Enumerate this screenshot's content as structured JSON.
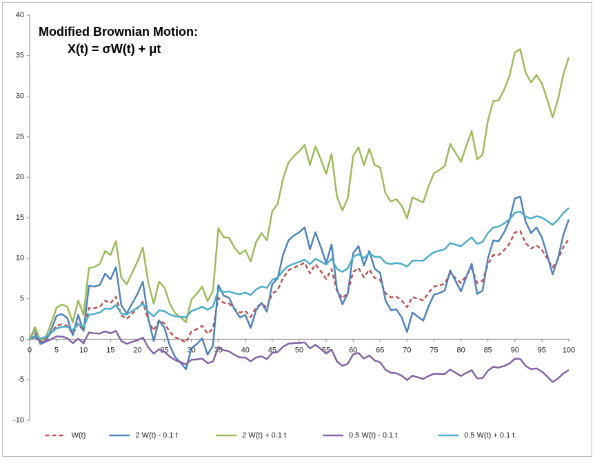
{
  "chart_data": {
    "type": "line",
    "title": "Modified Brownian Motion:",
    "subtitle": "X(t) = σW(t) + μt",
    "x": [
      0,
      1,
      2,
      3,
      4,
      5,
      6,
      7,
      8,
      9,
      10,
      11,
      12,
      13,
      14,
      15,
      16,
      17,
      18,
      19,
      20,
      21,
      22,
      23,
      24,
      25,
      26,
      27,
      28,
      29,
      30,
      31,
      32,
      33,
      34,
      35,
      36,
      37,
      38,
      39,
      40,
      41,
      42,
      43,
      44,
      45,
      46,
      47,
      48,
      49,
      50,
      51,
      52,
      53,
      54,
      55,
      56,
      57,
      58,
      59,
      60,
      61,
      62,
      63,
      64,
      65,
      66,
      67,
      68,
      69,
      70,
      71,
      72,
      73,
      74,
      75,
      76,
      77,
      78,
      79,
      80,
      81,
      82,
      83,
      84,
      85,
      86,
      87,
      88,
      89,
      90,
      91,
      92,
      93,
      94,
      95,
      96,
      97,
      98,
      99,
      100
    ],
    "series": [
      {
        "name": "W(t)",
        "color": "#c0504d",
        "dash": true,
        "values": [
          0,
          0.7,
          -0.2,
          0,
          0.8,
          1.7,
          1.85,
          1.65,
          0.65,
          1.95,
          1,
          3.85,
          3.85,
          4,
          4.75,
          4.45,
          5.25,
          2.95,
          2.5,
          3.15,
          3.8,
          4.6,
          2.4,
          1.05,
          2.35,
          1.95,
          0.9,
          0.25,
          -0.05,
          -0.4,
          0.95,
          1.25,
          1.65,
          0.7,
          1.3,
          5.1,
          4.5,
          4.4,
          3.75,
          3.3,
          3.5,
          2.75,
          3.9,
          4.4,
          3.9,
          5.65,
          6.05,
          7.55,
          8.5,
          8.85,
          9.1,
          9.45,
          8.15,
          9.25,
          8.4,
          7.45,
          8.65,
          5.95,
          5.05,
          5.75,
          8.3,
          8.8,
          7.65,
          8.6,
          7.55,
          7.35,
          5.7,
          5.15,
          5.25,
          4.8,
          3.95,
          5.2,
          5,
          4.8,
          5.75,
          6.5,
          6.65,
          6.85,
          8.15,
          7.55,
          6.95,
          7.9,
          8.75,
          6.95,
          7.2,
          9.25,
          10.4,
          10.4,
          11,
          11.8,
          13.2,
          13.35,
          11.85,
          11.2,
          11.6,
          11.05,
          10,
          8.85,
          9.9,
          11.4,
          12.4
        ]
      },
      {
        "name": "2 W(t) - 0.1 t",
        "color": "#4f81bd",
        "dash": false,
        "values": [
          0,
          1.3,
          -0.6,
          -0.3,
          1.2,
          2.9,
          3.1,
          2.6,
          0.5,
          3.0,
          1.0,
          6.6,
          6.5,
          6.7,
          8.1,
          7.4,
          8.9,
          4.2,
          3.2,
          4.4,
          5.6,
          7.1,
          2.6,
          -0.2,
          2.3,
          1.4,
          -0.8,
          -2.2,
          -2.9,
          -3.7,
          -1.1,
          -0.6,
          0.1,
          -1.9,
          -0.8,
          6.7,
          5.4,
          5.1,
          3.7,
          2.7,
          3.0,
          1.4,
          3.6,
          4.5,
          3.4,
          6.8,
          7.5,
          10.4,
          12.2,
          12.8,
          13.2,
          13.8,
          11.1,
          13.2,
          11.4,
          9.4,
          11.7,
          6.2,
          4.3,
          5.6,
          10.6,
          11.5,
          9.1,
          10.9,
          8.7,
          8.2,
          4.8,
          3.6,
          3.7,
          2.7,
          0.9,
          3.3,
          2.8,
          2.3,
          4.1,
          5.5,
          5.7,
          6.0,
          8.5,
          7.2,
          5.9,
          7.7,
          9.3,
          5.6,
          6.0,
          10.0,
          12.2,
          12.1,
          13.2,
          14.7,
          17.4,
          17.6,
          14.5,
          13.1,
          13.8,
          12.6,
          10.4,
          8.0,
          10.0,
          12.9,
          14.8
        ]
      },
      {
        "name": "2 W(t) + 0.1 t",
        "color": "#9bbb59",
        "dash": false,
        "values": [
          0,
          1.5,
          -0.2,
          0.3,
          2,
          3.9,
          4.3,
          4.0,
          2.1,
          4.8,
          3.0,
          8.8,
          8.9,
          9.3,
          10.9,
          10.4,
          12.1,
          7.6,
          6.8,
          8.2,
          9.6,
          11.3,
          7.0,
          4.4,
          7.1,
          6.4,
          4.4,
          3.2,
          2.7,
          2.1,
          4.9,
          5.6,
          6.5,
          4.7,
          6.0,
          13.7,
          12.6,
          12.5,
          11.3,
          10.5,
          11.0,
          9.6,
          12.0,
          13.1,
          12.2,
          15.8,
          16.7,
          19.8,
          21.8,
          22.6,
          23.2,
          24.0,
          21.5,
          23.8,
          22.2,
          20.4,
          22.9,
          17.6,
          15.9,
          17.4,
          22.6,
          23.7,
          21.5,
          23.5,
          21.5,
          21.2,
          18.0,
          17.0,
          17.3,
          16.5,
          14.9,
          17.5,
          17.2,
          16.9,
          18.9,
          20.5,
          20.9,
          21.4,
          24.1,
          23.0,
          21.9,
          23.9,
          25.7,
          22.2,
          22.8,
          27.0,
          29.4,
          29.5,
          30.8,
          32.5,
          35.4,
          35.8,
          32.9,
          31.7,
          32.6,
          31.6,
          29.6,
          27.4,
          29.6,
          32.7,
          34.8
        ]
      },
      {
        "name": "0.5 W(t) - 0.1 t",
        "color": "#8064a2",
        "dash": false,
        "values": [
          0,
          0.25,
          -0.3,
          -0.3,
          0,
          0.35,
          0.33,
          0.13,
          -0.48,
          0.08,
          -0.5,
          0.83,
          0.73,
          0.7,
          0.98,
          0.73,
          1.03,
          -0.23,
          -0.55,
          -0.33,
          -0.1,
          0.2,
          -1.0,
          -1.78,
          -1.23,
          -1.53,
          -2.15,
          -2.58,
          -2.83,
          -3.1,
          -2.53,
          -2.48,
          -2.38,
          -2.95,
          -2.75,
          -0.95,
          -1.35,
          -1.5,
          -1.93,
          -2.25,
          -2.25,
          -2.73,
          -2.25,
          -2.1,
          -2.45,
          -1.68,
          -1.58,
          -0.93,
          -0.55,
          -0.48,
          -0.45,
          -0.38,
          -1.13,
          -0.68,
          -1.2,
          -1.78,
          -1.28,
          -2.73,
          -3.28,
          -3.03,
          -1.85,
          -1.7,
          -2.38,
          -2.0,
          -2.63,
          -2.83,
          -3.75,
          -4.13,
          -4.18,
          -4.5,
          -5.03,
          -4.5,
          -4.7,
          -4.9,
          -4.53,
          -4.25,
          -4.28,
          -4.28,
          -3.73,
          -4.13,
          -4.53,
          -4.15,
          -3.83,
          -4.83,
          -4.8,
          -3.88,
          -3.4,
          -3.5,
          -3.3,
          -3.0,
          -2.4,
          -2.43,
          -3.28,
          -3.7,
          -3.6,
          -3.98,
          -4.6,
          -5.28,
          -4.85,
          -4.2,
          -3.8
        ]
      },
      {
        "name": "0.5 W(t) + 0.1 t",
        "color": "#4bacc6",
        "dash": false,
        "values": [
          0,
          0.45,
          0.1,
          0.3,
          0.8,
          1.35,
          1.53,
          1.53,
          1.12,
          1.88,
          1.5,
          3.03,
          3.13,
          3.3,
          3.78,
          3.73,
          4.23,
          3.17,
          3.05,
          3.47,
          3.9,
          4.4,
          3.4,
          2.82,
          3.57,
          3.47,
          3.05,
          2.82,
          2.77,
          2.7,
          3.47,
          3.72,
          4.02,
          3.65,
          4.05,
          6.05,
          5.85,
          5.9,
          5.67,
          5.55,
          5.75,
          5.47,
          6.15,
          6.5,
          6.35,
          7.32,
          7.62,
          8.47,
          9.05,
          9.32,
          9.55,
          9.82,
          9.27,
          9.92,
          9.6,
          9.22,
          9.92,
          8.67,
          8.32,
          8.77,
          10.15,
          10.5,
          10.02,
          10.6,
          10.17,
          10.17,
          9.45,
          9.27,
          9.42,
          9.3,
          8.97,
          9.7,
          9.7,
          9.7,
          10.27,
          10.75,
          10.92,
          11.12,
          11.87,
          11.67,
          11.47,
          12.05,
          12.57,
          11.77,
          12.0,
          13.12,
          13.8,
          13.9,
          14.3,
          14.8,
          15.6,
          15.77,
          15.12,
          14.9,
          15.2,
          15.02,
          14.6,
          14.12,
          14.75,
          15.6,
          16.2
        ]
      }
    ],
    "xlim": [
      0,
      100
    ],
    "xticks": [
      0,
      5,
      10,
      15,
      20,
      25,
      30,
      35,
      40,
      45,
      50,
      55,
      60,
      65,
      70,
      75,
      80,
      85,
      90,
      95,
      100
    ],
    "ylim": [
      -10,
      40
    ],
    "yticks": [
      -10,
      -5,
      0,
      5,
      10,
      15,
      20,
      25,
      30,
      35,
      40
    ],
    "grid": false,
    "legend": "bottom"
  }
}
